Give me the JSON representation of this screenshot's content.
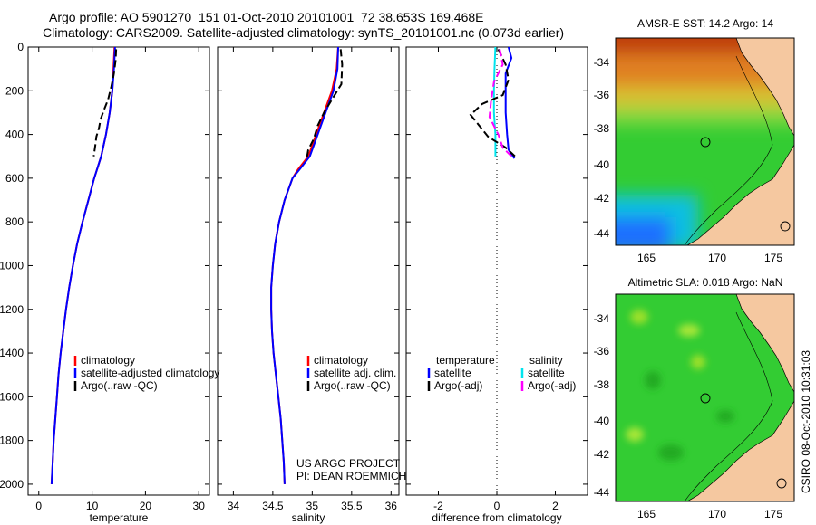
{
  "header": {
    "line1": "Argo profile: AO 5901270_151 01-Oct-2010 20101001_72 38.653S 169.468E",
    "line2": "Climatology: CARS2009. Satellite-adjusted climatology: synTS_20101001.nc (0.073d earlier)"
  },
  "chart_data": [
    {
      "type": "line",
      "id": "temperature",
      "xlabel": "temperature",
      "ylabel": "",
      "xlim": [
        -2,
        32
      ],
      "ylim": [
        0,
        2050
      ],
      "xticks": [
        0,
        10,
        20,
        30
      ],
      "yticks": [
        0,
        200,
        400,
        600,
        800,
        1000,
        1200,
        1400,
        1600,
        1800,
        2000
      ],
      "legend": [
        "climatology",
        "satellite-adjusted climatology",
        "Argo(..raw -QC)"
      ],
      "series": [
        {
          "name": "climatology",
          "color": "#ff0000",
          "dash": "",
          "points": [
            [
              14.2,
              0
            ],
            [
              14,
              100
            ],
            [
              13.8,
              200
            ],
            [
              13.3,
              300
            ],
            [
              12.6,
              400
            ],
            [
              11.7,
              500
            ],
            [
              10.4,
              600
            ],
            [
              9.3,
              700
            ],
            [
              8.2,
              800
            ],
            [
              7.2,
              900
            ],
            [
              6.4,
              1000
            ],
            [
              5.7,
              1100
            ],
            [
              5.1,
              1200
            ],
            [
              4.6,
              1300
            ],
            [
              4.1,
              1400
            ],
            [
              3.7,
              1500
            ],
            [
              3.4,
              1600
            ],
            [
              3.1,
              1700
            ],
            [
              2.8,
              1800
            ],
            [
              2.6,
              1900
            ],
            [
              2.4,
              2000
            ]
          ]
        },
        {
          "name": "satellite-adjusted climatology",
          "color": "#0000ff",
          "dash": "",
          "points": [
            [
              14.3,
              0
            ],
            [
              14.1,
              100
            ],
            [
              13.8,
              200
            ],
            [
              13.3,
              300
            ],
            [
              12.6,
              400
            ],
            [
              11.7,
              500
            ],
            [
              10.4,
              600
            ],
            [
              9.3,
              700
            ],
            [
              8.2,
              800
            ],
            [
              7.2,
              900
            ],
            [
              6.4,
              1000
            ],
            [
              5.7,
              1100
            ],
            [
              5.1,
              1200
            ],
            [
              4.6,
              1300
            ],
            [
              4.1,
              1400
            ],
            [
              3.7,
              1500
            ],
            [
              3.4,
              1600
            ],
            [
              3.1,
              1700
            ],
            [
              2.8,
              1800
            ],
            [
              2.6,
              1900
            ],
            [
              2.4,
              2000
            ]
          ]
        },
        {
          "name": "Argo(..raw -QC)",
          "color": "#000000",
          "dash": "8,4",
          "points": [
            [
              14.5,
              10
            ],
            [
              14.4,
              60
            ],
            [
              14.1,
              120
            ],
            [
              13.6,
              180
            ],
            [
              13.0,
              240
            ],
            [
              12.2,
              290
            ],
            [
              11.6,
              330
            ],
            [
              11.3,
              370
            ],
            [
              10.8,
              410
            ],
            [
              10.6,
              450
            ],
            [
              10.3,
              500
            ]
          ]
        }
      ]
    },
    {
      "type": "line",
      "id": "salinity",
      "xlabel": "salinity",
      "ylabel": "",
      "xlim": [
        33.8,
        36.1
      ],
      "ylim": [
        0,
        2050
      ],
      "xticks": [
        34,
        34.5,
        35,
        35.5,
        36
      ],
      "legend": [
        "climatology",
        "satellite adj. clim.",
        "Argo(..raw -QC)"
      ],
      "annotation": [
        "US ARGO PROJECT",
        "PI: DEAN ROEMMICH"
      ],
      "series": [
        {
          "name": "climatology",
          "color": "#ff0000",
          "dash": "",
          "points": [
            [
              35.33,
              0
            ],
            [
              35.31,
              100
            ],
            [
              35.25,
              200
            ],
            [
              35.15,
              300
            ],
            [
              35.05,
              400
            ],
            [
              34.95,
              500
            ],
            [
              34.82,
              560
            ],
            [
              34.75,
              600
            ],
            [
              34.65,
              700
            ],
            [
              34.58,
              800
            ],
            [
              34.53,
              900
            ],
            [
              34.5,
              1000
            ],
            [
              34.48,
              1100
            ],
            [
              34.48,
              1200
            ],
            [
              34.49,
              1300
            ],
            [
              34.51,
              1400
            ],
            [
              34.54,
              1500
            ],
            [
              34.57,
              1600
            ],
            [
              34.6,
              1700
            ],
            [
              34.62,
              1800
            ],
            [
              34.64,
              1900
            ],
            [
              34.65,
              2000
            ]
          ]
        },
        {
          "name": "satellite adj. clim.",
          "color": "#0000ff",
          "dash": "",
          "points": [
            [
              35.33,
              0
            ],
            [
              35.32,
              100
            ],
            [
              35.27,
              200
            ],
            [
              35.17,
              300
            ],
            [
              35.07,
              400
            ],
            [
              34.97,
              500
            ],
            [
              34.84,
              560
            ],
            [
              34.75,
              600
            ],
            [
              34.65,
              700
            ],
            [
              34.58,
              800
            ],
            [
              34.53,
              900
            ],
            [
              34.5,
              1000
            ],
            [
              34.48,
              1100
            ],
            [
              34.48,
              1200
            ],
            [
              34.49,
              1300
            ],
            [
              34.51,
              1400
            ],
            [
              34.54,
              1500
            ],
            [
              34.57,
              1600
            ],
            [
              34.6,
              1700
            ],
            [
              34.62,
              1800
            ],
            [
              34.64,
              1900
            ],
            [
              34.65,
              2000
            ]
          ]
        },
        {
          "name": "Argo(..raw -QC)",
          "color": "#000000",
          "dash": "8,4",
          "points": [
            [
              35.36,
              10
            ],
            [
              35.38,
              80
            ],
            [
              35.37,
              170
            ],
            [
              35.25,
              240
            ],
            [
              35.15,
              300
            ],
            [
              35.07,
              360
            ],
            [
              35.02,
              420
            ],
            [
              34.95,
              470
            ],
            [
              34.93,
              510
            ]
          ]
        }
      ]
    },
    {
      "type": "line",
      "id": "difference",
      "xlabel": "difference from climatology",
      "ylabel": "",
      "xlim": [
        -3.1,
        3.1
      ],
      "ylim": [
        0,
        2050
      ],
      "xticks": [
        -2,
        0,
        2
      ],
      "legend_temperature": [
        "temperature",
        "satellite",
        "Argo(-adj)"
      ],
      "legend_salinity": [
        "salinity",
        "satellite",
        "Argo(-adj)"
      ],
      "series": [
        {
          "name": "temperature satellite",
          "color": "#0000ff",
          "dash": "",
          "points": [
            [
              0.4,
              0
            ],
            [
              0.5,
              50
            ],
            [
              0.3,
              120
            ],
            [
              0.3,
              200
            ],
            [
              0.3,
              300
            ],
            [
              0.35,
              400
            ],
            [
              0.4,
              470
            ],
            [
              0.6,
              510
            ]
          ]
        },
        {
          "name": "salinity satellite",
          "color": "#00e5ee",
          "dash": "",
          "points": [
            [
              -0.05,
              0
            ],
            [
              -0.08,
              100
            ],
            [
              -0.1,
              200
            ],
            [
              -0.1,
              300
            ],
            [
              -0.05,
              400
            ],
            [
              -0.05,
              500
            ]
          ]
        },
        {
          "name": "temperature Argo(-adj)",
          "color": "#000000",
          "dash": "8,4",
          "points": [
            [
              0.05,
              10
            ],
            [
              0.3,
              80
            ],
            [
              0.4,
              150
            ],
            [
              0.2,
              220
            ],
            [
              -0.5,
              260
            ],
            [
              -0.9,
              310
            ],
            [
              -0.6,
              360
            ],
            [
              -0.3,
              410
            ],
            [
              0.3,
              460
            ],
            [
              0.7,
              510
            ]
          ]
        },
        {
          "name": "salinity Argo(-adj)",
          "color": "#ff00ff",
          "dash": "8,4",
          "points": [
            [
              0.1,
              10
            ],
            [
              0.2,
              80
            ],
            [
              -0.1,
              160
            ],
            [
              -0.2,
              250
            ],
            [
              -0.25,
              320
            ],
            [
              0.05,
              400
            ],
            [
              0.2,
              460
            ],
            [
              0.5,
              500
            ]
          ]
        }
      ]
    }
  ],
  "maps": [
    {
      "title": "AMSR-E SST: 14.2 Argo: 14",
      "xticks": [
        "165",
        "170",
        "175"
      ],
      "yticks": [
        "-34",
        "-36",
        "-38",
        "-40",
        "-42",
        "-44"
      ]
    },
    {
      "title": "Altimetric SLA: 0.018 Argo: NaN",
      "xticks": [
        "165",
        "170",
        "175"
      ],
      "yticks": [
        "-34",
        "-36",
        "-38",
        "-40",
        "-42",
        "-44"
      ]
    }
  ],
  "footer": {
    "stamp": "CSIRO 08-Oct-2010 10:31:03"
  },
  "colors": {
    "land": "#f5c8a0",
    "sst_warm": "#e07820",
    "sst_mid": "#33cc33",
    "sst_cool": "#1e90ff",
    "sla_base": "#33cc33"
  }
}
